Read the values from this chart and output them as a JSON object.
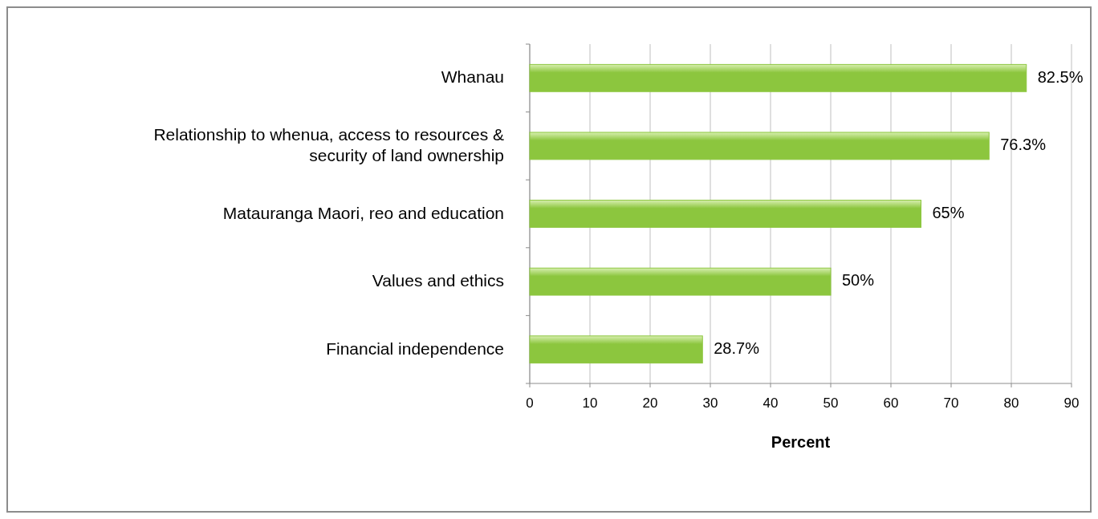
{
  "chart_data": {
    "type": "bar",
    "orientation": "horizontal",
    "categories": [
      "Whanau",
      "Relationship to whenua, access to resources & security of land ownership",
      "Matauranga Maori, reo and education",
      "Values and ethics",
      "Financial independence"
    ],
    "values": [
      82.5,
      76.3,
      65,
      50,
      28.7
    ],
    "value_labels": [
      "82.5%",
      "76.3%",
      "65%",
      "50%",
      "28.7%"
    ],
    "color": "#8cc63e",
    "xlabel": "Percent",
    "xlim": [
      0,
      90
    ],
    "xticks": [
      0,
      10,
      20,
      30,
      40,
      50,
      60,
      70,
      80,
      90
    ],
    "grid": "x"
  }
}
